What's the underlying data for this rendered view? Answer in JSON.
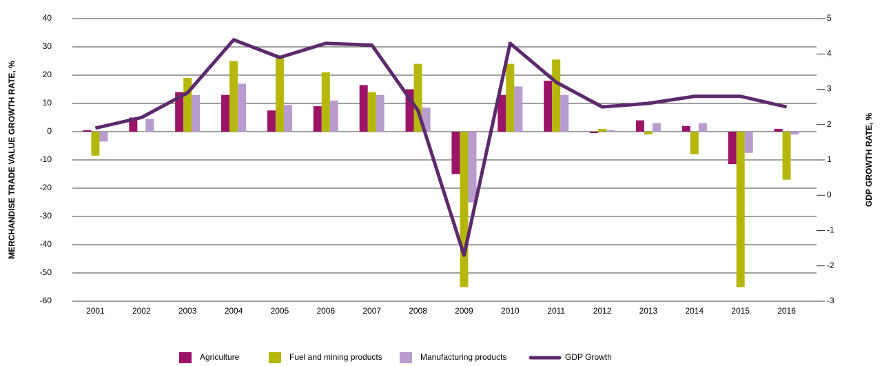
{
  "chart_data": {
    "type": "bar",
    "y_axis_label": "MERCHANDISE TRADE VALUE GROWTH RATE, %",
    "y2_axis_label": "GDP GROWTH RATE, %",
    "categories": [
      "2001",
      "2002",
      "2003",
      "2004",
      "2005",
      "2006",
      "2007",
      "2008",
      "2009",
      "2010",
      "2011",
      "2012",
      "2013",
      "2014",
      "2015",
      "2016"
    ],
    "series": [
      {
        "name": "Agriculture",
        "color": "#9b1467",
        "values": [
          0.5,
          5,
          14,
          13,
          7.5,
          9,
          16.5,
          15,
          -15,
          13,
          18,
          -0.5,
          4,
          2,
          -11.5,
          1
        ]
      },
      {
        "name": "Fuel and mining products",
        "color": "#b5b80b",
        "values": [
          -8.5,
          0,
          19,
          25,
          26,
          21,
          14,
          24,
          -55,
          24,
          25.5,
          1,
          -1,
          -8,
          -55,
          -17
        ]
      },
      {
        "name": "Manufacturing products",
        "color": "#b89bcf",
        "values": [
          -3.5,
          4.5,
          13,
          17,
          9.5,
          11,
          13,
          8.5,
          -25,
          16,
          13,
          0.5,
          3,
          3,
          -7.5,
          -1
        ]
      },
      {
        "name": "GDP Growth",
        "color": "#5c2a6c",
        "type": "line",
        "axis": "y2",
        "values": [
          1.9,
          2.2,
          2.9,
          4.4,
          3.9,
          4.3,
          4.25,
          2.4,
          -1.7,
          4.3,
          3.2,
          2.5,
          2.6,
          2.8,
          2.8,
          2.5
        ]
      }
    ],
    "ylim": [
      -60,
      40
    ],
    "yticks": [
      -60,
      -50,
      -40,
      -30,
      -20,
      -10,
      0,
      10,
      20,
      30,
      40
    ],
    "y2lim": [
      -3,
      5
    ],
    "y2ticks": [
      -3,
      -2,
      -1,
      0,
      1,
      2,
      3,
      4,
      5
    ],
    "grid": true,
    "legend": "bottom"
  }
}
